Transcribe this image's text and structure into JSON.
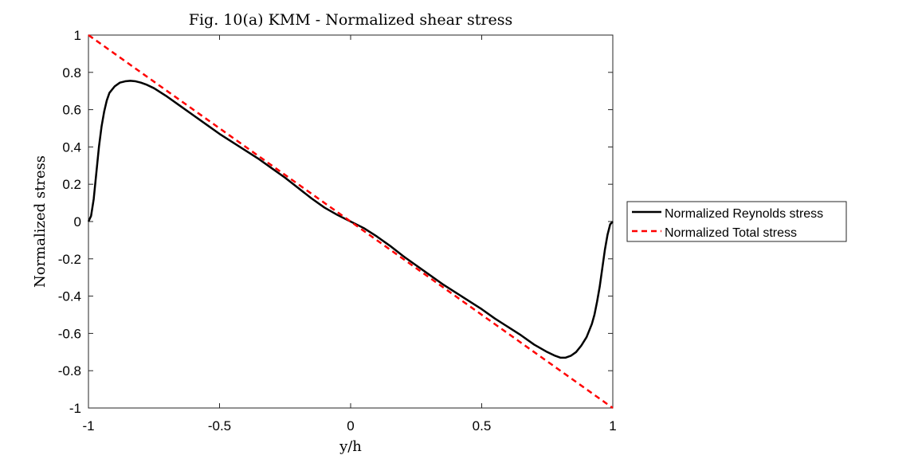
{
  "chart_data": {
    "type": "line",
    "title": "Fig. 10(a) KMM - Normalized shear stress",
    "xlabel": "y/h",
    "ylabel": "Normalized stress",
    "xlim": [
      -1,
      1
    ],
    "ylim": [
      -1,
      1
    ],
    "xticks": [
      "-1",
      "-0.5",
      "0",
      "0.5",
      "1"
    ],
    "yticks": [
      "1",
      "0.8",
      "0.6",
      "0.4",
      "0.2",
      "0",
      "-0.2",
      "-0.4",
      "-0.6",
      "-0.8",
      "-1"
    ],
    "grid": false,
    "legend_position": "outside-right",
    "series": [
      {
        "name": "Normalized Reynolds stress",
        "color": "#000000",
        "style": "solid",
        "x": [
          -1.0,
          -0.99,
          -0.98,
          -0.97,
          -0.96,
          -0.95,
          -0.94,
          -0.93,
          -0.92,
          -0.9,
          -0.88,
          -0.86,
          -0.84,
          -0.82,
          -0.8,
          -0.78,
          -0.75,
          -0.7,
          -0.65,
          -0.6,
          -0.55,
          -0.5,
          -0.45,
          -0.4,
          -0.35,
          -0.3,
          -0.25,
          -0.2,
          -0.15,
          -0.1,
          -0.05,
          0.0,
          0.05,
          0.1,
          0.15,
          0.2,
          0.25,
          0.3,
          0.35,
          0.4,
          0.45,
          0.5,
          0.55,
          0.6,
          0.65,
          0.7,
          0.75,
          0.78,
          0.8,
          0.82,
          0.84,
          0.86,
          0.88,
          0.9,
          0.92,
          0.93,
          0.94,
          0.95,
          0.96,
          0.97,
          0.98,
          0.99,
          1.0
        ],
        "y": [
          0.0,
          0.03,
          0.12,
          0.26,
          0.4,
          0.51,
          0.59,
          0.65,
          0.69,
          0.725,
          0.745,
          0.752,
          0.755,
          0.752,
          0.745,
          0.735,
          0.715,
          0.67,
          0.62,
          0.57,
          0.52,
          0.47,
          0.425,
          0.38,
          0.335,
          0.285,
          0.235,
          0.18,
          0.125,
          0.075,
          0.035,
          0.0,
          -0.035,
          -0.08,
          -0.13,
          -0.185,
          -0.235,
          -0.285,
          -0.335,
          -0.38,
          -0.425,
          -0.47,
          -0.52,
          -0.565,
          -0.61,
          -0.66,
          -0.7,
          -0.72,
          -0.73,
          -0.73,
          -0.72,
          -0.7,
          -0.665,
          -0.62,
          -0.55,
          -0.5,
          -0.43,
          -0.35,
          -0.25,
          -0.15,
          -0.07,
          -0.015,
          0.0
        ]
      },
      {
        "name": "Normalized Total stress",
        "color": "#ff0000",
        "style": "dashed",
        "x": [
          -1,
          1
        ],
        "y": [
          1,
          -1
        ]
      }
    ]
  }
}
